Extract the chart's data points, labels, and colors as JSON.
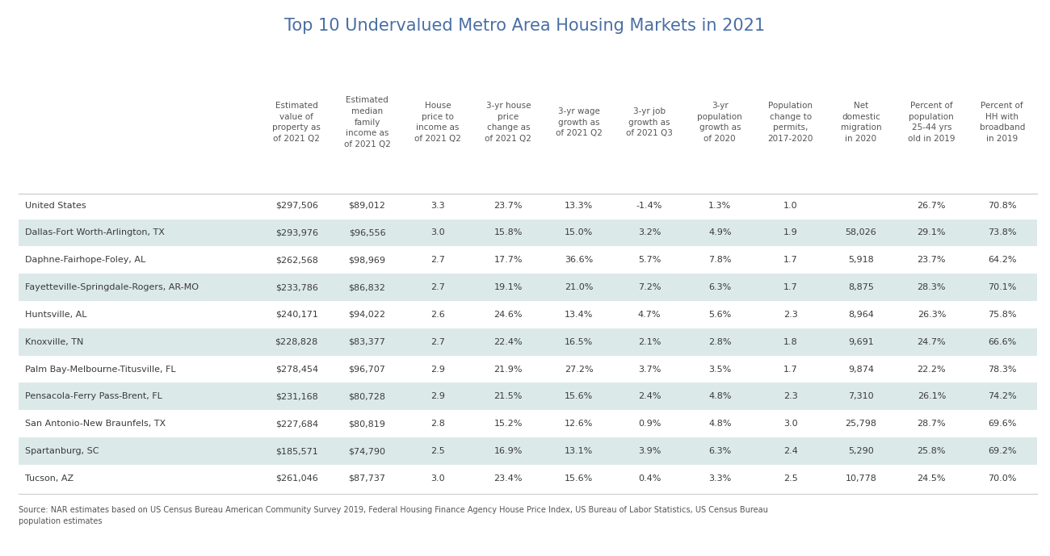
{
  "title": "Top 10 Undervalued Metro Area Housing Markets in 2021",
  "title_color": "#4a6fa5",
  "title_fontsize": 15,
  "background_color": "#ffffff",
  "col_headers": [
    "Estimated\nvalue of\nproperty as\nof 2021 Q2",
    "Estimated\nmedian\nfamily\nincome as\nof 2021 Q2",
    "House\nprice to\nincome as\nof 2021 Q2",
    "3-yr house\nprice\nchange as\nof 2021 Q2",
    "3-yr wage\ngrowth as\nof 2021 Q2",
    "3-yr job\ngrowth as\nof 2021 Q3",
    "3-yr\npopulation\ngrowth as\nof 2020",
    "Population\nchange to\npermits,\n2017-2020",
    "Net\ndomestic\nmigration\nin 2020",
    "Percent of\npopulation\n25-44 yrs\nold in 2019",
    "Percent of\nHH with\nbroadband\nin 2019"
  ],
  "rows": [
    {
      "name": "United States",
      "values": [
        "$297,506",
        "$89,012",
        "3.3",
        "23.7%",
        "13.3%",
        "-1.4%",
        "1.3%",
        "1.0",
        "",
        "26.7%",
        "70.8%"
      ],
      "shaded": false
    },
    {
      "name": "Dallas-Fort Worth-Arlington, TX",
      "values": [
        "$293,976",
        "$96,556",
        "3.0",
        "15.8%",
        "15.0%",
        "3.2%",
        "4.9%",
        "1.9",
        "58,026",
        "29.1%",
        "73.8%"
      ],
      "shaded": true
    },
    {
      "name": "Daphne-Fairhope-Foley, AL",
      "values": [
        "$262,568",
        "$98,969",
        "2.7",
        "17.7%",
        "36.6%",
        "5.7%",
        "7.8%",
        "1.7",
        "5,918",
        "23.7%",
        "64.2%"
      ],
      "shaded": false
    },
    {
      "name": "Fayetteville-Springdale-Rogers, AR-MO",
      "values": [
        "$233,786",
        "$86,832",
        "2.7",
        "19.1%",
        "21.0%",
        "7.2%",
        "6.3%",
        "1.7",
        "8,875",
        "28.3%",
        "70.1%"
      ],
      "shaded": true
    },
    {
      "name": "Huntsville, AL",
      "values": [
        "$240,171",
        "$94,022",
        "2.6",
        "24.6%",
        "13.4%",
        "4.7%",
        "5.6%",
        "2.3",
        "8,964",
        "26.3%",
        "75.8%"
      ],
      "shaded": false
    },
    {
      "name": "Knoxville, TN",
      "values": [
        "$228,828",
        "$83,377",
        "2.7",
        "22.4%",
        "16.5%",
        "2.1%",
        "2.8%",
        "1.8",
        "9,691",
        "24.7%",
        "66.6%"
      ],
      "shaded": true
    },
    {
      "name": "Palm Bay-Melbourne-Titusville, FL",
      "values": [
        "$278,454",
        "$96,707",
        "2.9",
        "21.9%",
        "27.2%",
        "3.7%",
        "3.5%",
        "1.7",
        "9,874",
        "22.2%",
        "78.3%"
      ],
      "shaded": false
    },
    {
      "name": "Pensacola-Ferry Pass-Brent, FL",
      "values": [
        "$231,168",
        "$80,728",
        "2.9",
        "21.5%",
        "15.6%",
        "2.4%",
        "4.8%",
        "2.3",
        "7,310",
        "26.1%",
        "74.2%"
      ],
      "shaded": true
    },
    {
      "name": "San Antonio-New Braunfels, TX",
      "values": [
        "$227,684",
        "$80,819",
        "2.8",
        "15.2%",
        "12.6%",
        "0.9%",
        "4.8%",
        "3.0",
        "25,798",
        "28.7%",
        "69.6%"
      ],
      "shaded": false
    },
    {
      "name": "Spartanburg, SC",
      "values": [
        "$185,571",
        "$74,790",
        "2.5",
        "16.9%",
        "13.1%",
        "3.9%",
        "6.3%",
        "2.4",
        "5,290",
        "25.8%",
        "69.2%"
      ],
      "shaded": true
    },
    {
      "name": "Tucson, AZ",
      "values": [
        "$261,046",
        "$87,737",
        "3.0",
        "23.4%",
        "15.6%",
        "0.4%",
        "3.3%",
        "2.5",
        "10,778",
        "24.5%",
        "70.0%"
      ],
      "shaded": false
    }
  ],
  "source_text": "Source: NAR estimates based on US Census Bureau American Community Survey 2019, Federal Housing Finance Agency House Price Index, US Bureau of Labor Statistics, US Census Bureau\npopulation estimates",
  "shaded_color": "#dce9e9",
  "text_color": "#3a3a3a",
  "header_text_color": "#555555"
}
